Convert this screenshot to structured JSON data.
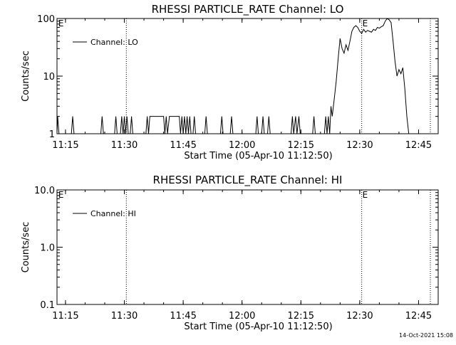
{
  "chart_data": [
    {
      "type": "line",
      "title": "RHESSI PARTICLE_RATE Channel: LO",
      "xlabel": "Start Time (05-Apr-10 11:12:50)",
      "ylabel": "Counts/sec",
      "x_ticks": [
        "11:15",
        "11:30",
        "11:45",
        "12:00",
        "12:15",
        "12:30",
        "12:45"
      ],
      "x_range": [
        "11:12:50",
        "12:50:00"
      ],
      "y_scale": "log",
      "y_ticks": [
        "1",
        "10",
        "100"
      ],
      "ylim": [
        1,
        100
      ],
      "legend": {
        "label": "Channel: LO",
        "position": "top-left"
      },
      "markers": [
        {
          "label": "E",
          "time": "11:13:00",
          "line": false
        },
        {
          "label": "",
          "time": "11:30:30",
          "line": true
        },
        {
          "label": "E",
          "time": "12:30:30",
          "line": true
        },
        {
          "label": "",
          "time": "12:48:00",
          "line": true
        }
      ],
      "series": [
        {
          "name": "Channel: LO",
          "points": [
            [
              "11:12:50",
              1
            ],
            [
              "11:13:00",
              2
            ],
            [
              "11:13:20",
              1
            ],
            [
              "11:16:30",
              1
            ],
            [
              "11:16:50",
              2
            ],
            [
              "11:17:10",
              1
            ],
            [
              "11:24:00",
              1
            ],
            [
              "11:24:20",
              2
            ],
            [
              "11:24:40",
              1
            ],
            [
              "11:27:30",
              1
            ],
            [
              "11:27:50",
              2
            ],
            [
              "11:28:10",
              1
            ],
            [
              "11:29:00",
              1
            ],
            [
              "11:29:20",
              2
            ],
            [
              "11:29:40",
              1
            ],
            [
              "11:30:00",
              2
            ],
            [
              "11:30:20",
              1
            ],
            [
              "11:30:40",
              2
            ],
            [
              "11:31:00",
              1
            ],
            [
              "11:31:30",
              1
            ],
            [
              "11:31:50",
              2
            ],
            [
              "11:32:10",
              1
            ],
            [
              "11:35:30",
              1
            ],
            [
              "11:35:50",
              2
            ],
            [
              "11:36:10",
              1
            ],
            [
              "11:36:30",
              2
            ],
            [
              "11:40:00",
              2
            ],
            [
              "11:40:20",
              1
            ],
            [
              "11:40:40",
              2
            ],
            [
              "11:41:00",
              1
            ],
            [
              "11:41:30",
              2
            ],
            [
              "11:44:00",
              2
            ],
            [
              "11:44:20",
              1
            ],
            [
              "11:44:40",
              2
            ],
            [
              "11:45:00",
              1
            ],
            [
              "11:45:20",
              2
            ],
            [
              "11:45:40",
              1
            ],
            [
              "11:46:00",
              2
            ],
            [
              "11:46:20",
              1
            ],
            [
              "11:46:40",
              2
            ],
            [
              "11:47:00",
              1
            ],
            [
              "11:47:30",
              1
            ],
            [
              "11:47:50",
              2
            ],
            [
              "11:48:10",
              1
            ],
            [
              "11:50:30",
              1
            ],
            [
              "11:50:50",
              2
            ],
            [
              "11:51:10",
              1
            ],
            [
              "11:54:30",
              1
            ],
            [
              "11:54:50",
              2
            ],
            [
              "11:55:10",
              1
            ],
            [
              "11:57:00",
              1
            ],
            [
              "11:57:20",
              2
            ],
            [
              "11:57:40",
              1
            ],
            [
              "12:03:30",
              1
            ],
            [
              "12:03:50",
              2
            ],
            [
              "12:04:10",
              1
            ],
            [
              "12:05:00",
              1
            ],
            [
              "12:05:20",
              2
            ],
            [
              "12:05:40",
              1
            ],
            [
              "12:06:30",
              1
            ],
            [
              "12:06:50",
              2
            ],
            [
              "12:07:10",
              1
            ],
            [
              "12:12:30",
              1
            ],
            [
              "12:12:50",
              2
            ],
            [
              "12:13:10",
              1
            ],
            [
              "12:13:40",
              2
            ],
            [
              "12:14:00",
              1
            ],
            [
              "12:14:30",
              2
            ],
            [
              "12:14:50",
              1
            ],
            [
              "12:18:00",
              1
            ],
            [
              "12:18:20",
              2
            ],
            [
              "12:18:40",
              1
            ],
            [
              "12:21:00",
              1
            ],
            [
              "12:21:20",
              2
            ],
            [
              "12:21:40",
              1
            ],
            [
              "12:22:00",
              2
            ],
            [
              "12:22:20",
              1
            ],
            [
              "12:22:40",
              3
            ],
            [
              "12:23:00",
              2
            ],
            [
              "12:23:30",
              4
            ],
            [
              "12:24:00",
              8
            ],
            [
              "12:24:30",
              20
            ],
            [
              "12:25:00",
              45
            ],
            [
              "12:25:30",
              30
            ],
            [
              "12:26:00",
              25
            ],
            [
              "12:26:30",
              35
            ],
            [
              "12:27:00",
              28
            ],
            [
              "12:27:30",
              40
            ],
            [
              "12:28:00",
              60
            ],
            [
              "12:28:30",
              70
            ],
            [
              "12:29:00",
              75
            ],
            [
              "12:29:30",
              70
            ],
            [
              "12:30:00",
              60
            ],
            [
              "12:30:30",
              55
            ],
            [
              "12:31:00",
              65
            ],
            [
              "12:31:30",
              58
            ],
            [
              "12:32:00",
              62
            ],
            [
              "12:32:30",
              60
            ],
            [
              "12:33:00",
              58
            ],
            [
              "12:33:30",
              65
            ],
            [
              "12:34:00",
              62
            ],
            [
              "12:34:30",
              70
            ],
            [
              "12:35:00",
              68
            ],
            [
              "12:35:30",
              72
            ],
            [
              "12:36:00",
              75
            ],
            [
              "12:36:30",
              90
            ],
            [
              "12:37:00",
              100
            ],
            [
              "12:37:30",
              95
            ],
            [
              "12:38:00",
              85
            ],
            [
              "12:38:30",
              40
            ],
            [
              "12:39:00",
              18
            ],
            [
              "12:39:30",
              10
            ],
            [
              "12:40:00",
              13
            ],
            [
              "12:40:30",
              11
            ],
            [
              "12:41:00",
              14
            ],
            [
              "12:41:30",
              6
            ],
            [
              "12:42:00",
              2
            ],
            [
              "12:42:30",
              1
            ]
          ]
        }
      ]
    },
    {
      "type": "line",
      "title": "RHESSI PARTICLE_RATE Channel: HI",
      "xlabel": "Start Time (05-Apr-10 11:12:50)",
      "ylabel": "Counts/sec",
      "x_ticks": [
        "11:15",
        "11:30",
        "11:45",
        "12:00",
        "12:15",
        "12:30",
        "12:45"
      ],
      "x_range": [
        "11:12:50",
        "12:50:00"
      ],
      "y_scale": "log",
      "y_ticks": [
        "0.1",
        "1.0",
        "10.0"
      ],
      "ylim": [
        0.1,
        10
      ],
      "legend": {
        "label": "Channel: HI",
        "position": "top-left"
      },
      "markers": [
        {
          "label": "E",
          "time": "11:13:00",
          "line": false
        },
        {
          "label": "",
          "time": "11:30:30",
          "line": true
        },
        {
          "label": "E",
          "time": "12:30:30",
          "line": true
        },
        {
          "label": "",
          "time": "12:48:00",
          "line": true
        }
      ],
      "series": [
        {
          "name": "Channel: HI",
          "points": []
        }
      ]
    }
  ],
  "footer": {
    "timestamp": "14-Oct-2021 15:08"
  }
}
